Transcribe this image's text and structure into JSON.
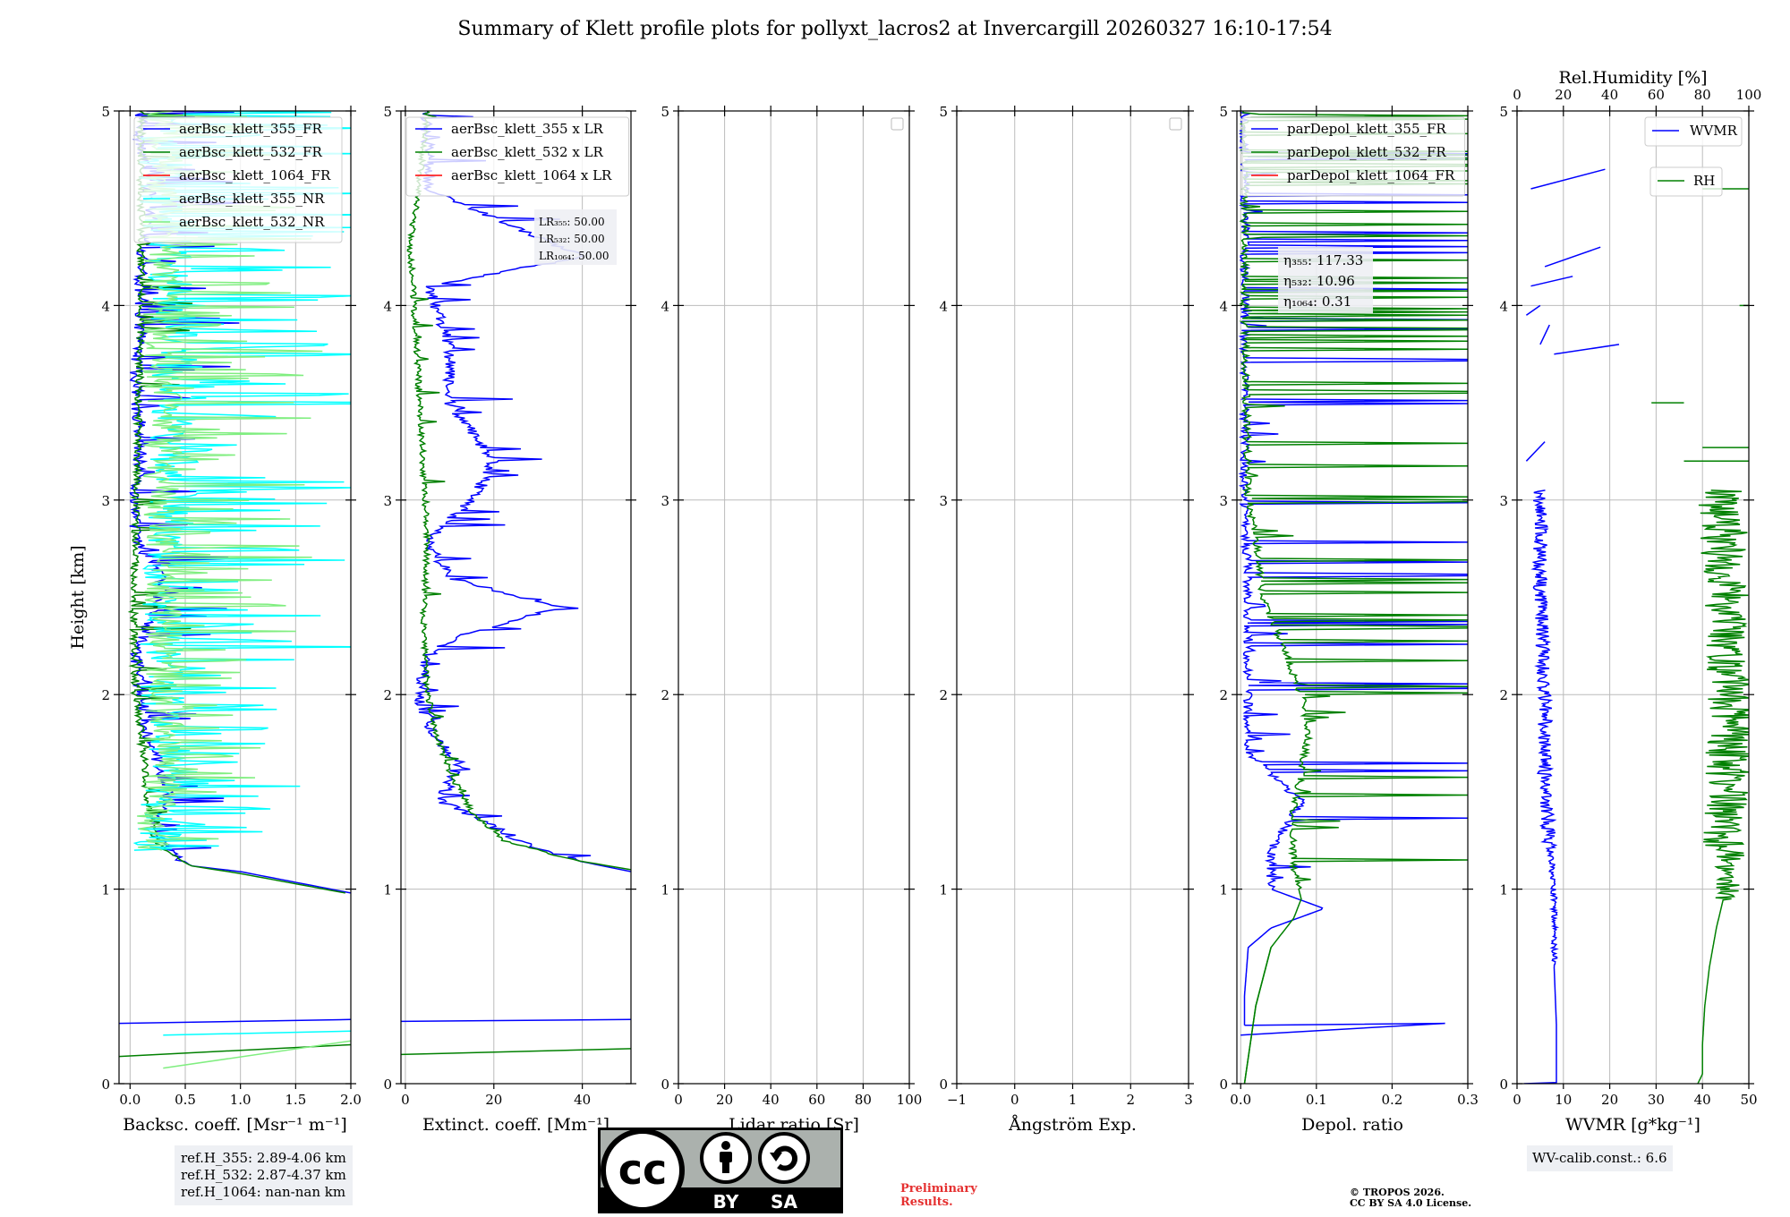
{
  "title": "Summary of Klett profile plots for pollyxt_lacros2 at Invercargill 20260327 16:10-17:54",
  "colors": {
    "c355": "#0000ff",
    "c532": "#008000",
    "c1064": "#ff0000",
    "c355nr": "#00ffff",
    "c532nr": "#80ee80",
    "grid": "#bbbbbb"
  },
  "chart_data": [
    {
      "type": "line",
      "id": "bsc",
      "xlabel": "Backsc. coeff. [Msr⁻¹ m⁻¹]",
      "ylabel": "Height [km]",
      "xlim": [
        -0.1,
        2.0
      ],
      "ylim": [
        0,
        5
      ],
      "xticks": [
        0.0,
        0.5,
        1.0,
        1.5,
        2.0
      ],
      "xticklabels": [
        "0.0",
        "0.5",
        "1.0",
        "1.5",
        "2.0"
      ],
      "yticks": [
        0,
        1,
        2,
        3,
        4,
        5
      ],
      "grid": true,
      "legend": "top-right",
      "series": [
        {
          "name": "aerBsc_klett_355_FR",
          "color": "#0000ff",
          "profile": "bsc355",
          "points": [
            [
              2.0,
              0.33
            ],
            [
              -0.1,
              0.31
            ],
            [
              0.0,
              0.31
            ],
            [
              2.0,
              0.98
            ],
            [
              1.0,
              1.09
            ],
            [
              0.55,
              1.12
            ],
            [
              0.35,
              1.2
            ],
            [
              0.2,
              1.33
            ],
            [
              0.35,
              1.45
            ],
            [
              0.3,
              1.6
            ],
            [
              0.15,
              1.8
            ],
            [
              0.1,
              2.0
            ],
            [
              0.05,
              2.2
            ],
            [
              0.2,
              2.4
            ],
            [
              0.3,
              2.6
            ],
            [
              0.05,
              2.8
            ],
            [
              0.05,
              3.0
            ],
            [
              0.1,
              3.3
            ],
            [
              0.05,
              3.6
            ],
            [
              0.1,
              3.9
            ],
            [
              0.1,
              4.2
            ],
            [
              0.2,
              4.5
            ],
            [
              0.1,
              4.8
            ],
            [
              0.1,
              5.0
            ]
          ]
        },
        {
          "name": "aerBsc_klett_532_FR",
          "color": "#008000",
          "profile": "bsc532",
          "points": [
            [
              2.0,
              0.2
            ],
            [
              -0.1,
              0.14
            ],
            [
              1.95,
              0.98
            ],
            [
              1.0,
              1.08
            ],
            [
              0.55,
              1.12
            ],
            [
              0.3,
              1.2
            ],
            [
              0.2,
              1.3
            ],
            [
              0.15,
              1.5
            ],
            [
              0.1,
              1.8
            ],
            [
              0.05,
              2.0
            ],
            [
              0.03,
              2.4
            ],
            [
              0.05,
              2.8
            ],
            [
              0.05,
              3.0
            ],
            [
              0.08,
              3.5
            ],
            [
              0.1,
              4.0
            ],
            [
              0.1,
              4.5
            ],
            [
              0.1,
              5.0
            ]
          ]
        },
        {
          "name": "aerBsc_klett_1064_FR",
          "color": "#ff0000",
          "profile": "none",
          "points": []
        },
        {
          "name": "aerBsc_klett_355_NR",
          "color": "#00ffff",
          "profile": "bsc355nr",
          "points": [
            [
              0.3,
              0.25
            ],
            [
              2.0,
              0.27
            ],
            [
              0.2,
              1.2
            ],
            [
              0.4,
              1.6
            ],
            [
              0.3,
              2.0
            ],
            [
              0.3,
              2.5
            ],
            [
              0.4,
              3.0
            ],
            [
              0.4,
              3.5
            ],
            [
              0.4,
              4.0
            ],
            [
              0.3,
              4.5
            ],
            [
              0.3,
              5.0
            ]
          ]
        },
        {
          "name": "aerBsc_klett_532_NR",
          "color": "#80ee80",
          "profile": "bsc532nr",
          "points": [
            [
              0.3,
              0.08
            ],
            [
              2.0,
              0.22
            ],
            [
              0.2,
              1.2
            ],
            [
              0.3,
              1.6
            ],
            [
              0.3,
              2.0
            ],
            [
              0.3,
              2.5
            ],
            [
              0.3,
              3.0
            ],
            [
              0.3,
              3.5
            ],
            [
              0.3,
              4.0
            ],
            [
              0.3,
              4.5
            ],
            [
              0.3,
              5.0
            ]
          ]
        }
      ],
      "infobox": [
        "ref.H_355: 2.89-4.06 km",
        "ref.H_532: 2.87-4.37 km",
        "ref.H_1064: nan-nan km"
      ]
    },
    {
      "type": "line",
      "id": "ext",
      "xlabel": "Extinct. coeff. [Mm⁻¹]",
      "xlim": [
        -1,
        51
      ],
      "ylim": [
        0,
        5
      ],
      "xticks": [
        0,
        20,
        40
      ],
      "xticklabels": [
        "0",
        "20",
        "40"
      ],
      "yticks": [
        0,
        1,
        2,
        3,
        4,
        5
      ],
      "grid": true,
      "legend": "top-right",
      "series": [
        {
          "name": "aerBsc_klett_355 x LR",
          "color": "#0000ff",
          "profile": "ext355",
          "points": [
            [
              51,
              0.33
            ],
            [
              -1,
              0.32
            ],
            [
              51,
              1.09
            ],
            [
              38,
              1.15
            ],
            [
              25,
              1.25
            ],
            [
              18,
              1.35
            ],
            [
              8,
              1.45
            ],
            [
              12,
              1.65
            ],
            [
              6,
              1.8
            ],
            [
              3,
              2.0
            ],
            [
              5,
              2.2
            ],
            [
              12,
              2.3
            ],
            [
              35,
              2.45
            ],
            [
              10,
              2.6
            ],
            [
              5,
              2.8
            ],
            [
              15,
              3.0
            ],
            [
              20,
              3.2
            ],
            [
              10,
              3.5
            ],
            [
              10,
              3.8
            ],
            [
              5,
              4.1
            ],
            [
              40,
              4.25
            ],
            [
              25,
              4.4
            ],
            [
              5,
              4.6
            ],
            [
              5,
              5.0
            ]
          ]
        },
        {
          "name": "aerBsc_klett_532 x LR",
          "color": "#008000",
          "profile": "ext532",
          "points": [
            [
              51,
              0.18
            ],
            [
              -1,
              0.15
            ],
            [
              51,
              1.1
            ],
            [
              38,
              1.15
            ],
            [
              22,
              1.25
            ],
            [
              15,
              1.4
            ],
            [
              10,
              1.6
            ],
            [
              7,
              1.8
            ],
            [
              5,
              2.0
            ],
            [
              4,
              2.4
            ],
            [
              5,
              2.8
            ],
            [
              4,
              3.2
            ],
            [
              3,
              3.6
            ],
            [
              2,
              4.0
            ],
            [
              1,
              4.3
            ],
            [
              3,
              4.6
            ],
            [
              5,
              5.0
            ]
          ]
        },
        {
          "name": "aerBsc_klett_1064 x LR",
          "color": "#ff0000",
          "profile": "none",
          "points": []
        }
      ],
      "lr_text": [
        "LR₃₅₅: 50.00",
        "LR₅₃₂: 50.00",
        "LR₁₀₆₄: 50.00"
      ]
    },
    {
      "type": "line",
      "id": "lr",
      "xlabel": "Lidar ratio [Sr]",
      "xlim": [
        0,
        100
      ],
      "ylim": [
        0,
        5
      ],
      "xticks": [
        0,
        20,
        40,
        60,
        80,
        100
      ],
      "xticklabels": [
        "0",
        "20",
        "40",
        "60",
        "80",
        "100"
      ],
      "yticks": [
        0,
        1,
        2,
        3,
        4,
        5
      ],
      "grid": true,
      "legend": "top-right (empty)",
      "series": []
    },
    {
      "type": "line",
      "id": "ang",
      "xlabel": "Ångström Exp.",
      "xlim": [
        -1,
        3
      ],
      "ylim": [
        0,
        5
      ],
      "xticks": [
        -1,
        0,
        1,
        2,
        3
      ],
      "xticklabels": [
        "−1",
        "0",
        "1",
        "2",
        "3"
      ],
      "yticks": [
        0,
        1,
        2,
        3,
        4,
        5
      ],
      "grid": true,
      "legend": "top-right (empty)",
      "series": []
    },
    {
      "type": "line",
      "id": "depol",
      "xlabel": "Depol. ratio",
      "xlim": [
        -0.005,
        0.3
      ],
      "ylim": [
        0,
        5
      ],
      "xticks": [
        0.0,
        0.1,
        0.2,
        0.3
      ],
      "xticklabels": [
        "0.0",
        "0.1",
        "0.2",
        "0.3"
      ],
      "yticks": [
        0,
        1,
        2,
        3,
        4,
        5
      ],
      "grid": true,
      "legend": "top-right",
      "series": [
        {
          "name": "parDepol_klett_355_FR",
          "color": "#0000ff",
          "profile": "dep355",
          "points": [
            [
              0.0,
              0.25
            ],
            [
              0.27,
              0.31
            ],
            [
              0.005,
              0.3
            ],
            [
              0.005,
              0.45
            ],
            [
              0.01,
              0.7
            ],
            [
              0.04,
              0.8
            ],
            [
              0.11,
              0.9
            ],
            [
              0.04,
              1.0
            ],
            [
              0.04,
              1.2
            ],
            [
              0.08,
              1.45
            ],
            [
              0.01,
              1.7
            ],
            [
              0.01,
              2.0
            ],
            [
              0.01,
              2.6
            ],
            [
              0.005,
              3.0
            ],
            [
              0.005,
              4.0
            ],
            [
              0.005,
              5.0
            ]
          ]
        },
        {
          "name": "parDepol_klett_532_FR",
          "color": "#008000",
          "profile": "dep532",
          "points": [
            [
              0.005,
              0.0
            ],
            [
              0.02,
              0.4
            ],
            [
              0.04,
              0.7
            ],
            [
              0.07,
              0.85
            ],
            [
              0.08,
              0.95
            ],
            [
              0.07,
              1.1
            ],
            [
              0.07,
              1.4
            ],
            [
              0.08,
              1.6
            ],
            [
              0.09,
              1.8
            ],
            [
              0.08,
              2.0
            ],
            [
              0.03,
              2.5
            ],
            [
              0.02,
              2.8
            ],
            [
              0.01,
              3.0
            ],
            [
              0.005,
              4.0
            ],
            [
              0.005,
              5.0
            ]
          ]
        },
        {
          "name": "parDepol_klett_1064_FR",
          "color": "#ff0000",
          "profile": "none",
          "points": []
        }
      ],
      "eta_text": [
        "η₃₅₅: 117.33",
        "η₅₃₂: 10.96",
        "η₁₀₆₄: 0.31"
      ]
    },
    {
      "type": "line",
      "id": "wv",
      "xlabel": "WVMR [g*kg⁻¹]",
      "top_xlabel": "Rel.Humidity [%]",
      "xlim": [
        0,
        50
      ],
      "top_xlim": [
        0,
        100
      ],
      "ylim": [
        0,
        5
      ],
      "xticks": [
        0,
        10,
        20,
        30,
        40,
        50
      ],
      "xticklabels": [
        "0",
        "10",
        "20",
        "30",
        "40",
        "50"
      ],
      "top_xticks": [
        0,
        20,
        40,
        60,
        80,
        100
      ],
      "top_xticklabels": [
        "0",
        "20",
        "40",
        "60",
        "80",
        "100"
      ],
      "yticks": [
        0,
        1,
        2,
        3,
        4,
        5
      ],
      "grid": true,
      "series": [
        {
          "name": "WVMR",
          "color": "#0000ff",
          "profile": "wvmr",
          "points": [
            [
              1.5,
              0.0
            ],
            [
              8.5,
              0.0
            ],
            [
              8.5,
              0.3
            ],
            [
              8,
              0.6
            ],
            [
              8,
              1.0
            ],
            [
              6,
              1.5
            ],
            [
              6,
              2.0
            ],
            [
              5,
              2.5
            ],
            [
              5,
              3.0
            ],
            [
              5,
              4.0
            ],
            [
              5,
              4.7
            ]
          ]
        },
        {
          "name": "RH",
          "color": "#008000",
          "profile": "rh",
          "points": [
            [
              78,
              0.0
            ],
            [
              80,
              0.05
            ],
            [
              80,
              0.2
            ],
            [
              81,
              0.4
            ],
            [
              83,
              0.6
            ],
            [
              86,
              0.8
            ],
            [
              90,
              1.0
            ],
            [
              90,
              1.5
            ],
            [
              92,
              2.0
            ],
            [
              90,
              2.5
            ],
            [
              88,
              3.0
            ],
            [
              90,
              3.25
            ],
            [
              70,
              3.5
            ],
            [
              95,
              4.0
            ],
            [
              95,
              4.6
            ]
          ]
        }
      ],
      "wv_text": "WV-calib.const.: 6.6"
    }
  ],
  "badge": {
    "by": "BY",
    "sa": "SA",
    "cc": "cc"
  },
  "preliminary": [
    "Preliminary",
    "Results."
  ],
  "copyright": [
    "© TROPOS 2026.",
    "CC BY SA 4.0 License."
  ]
}
